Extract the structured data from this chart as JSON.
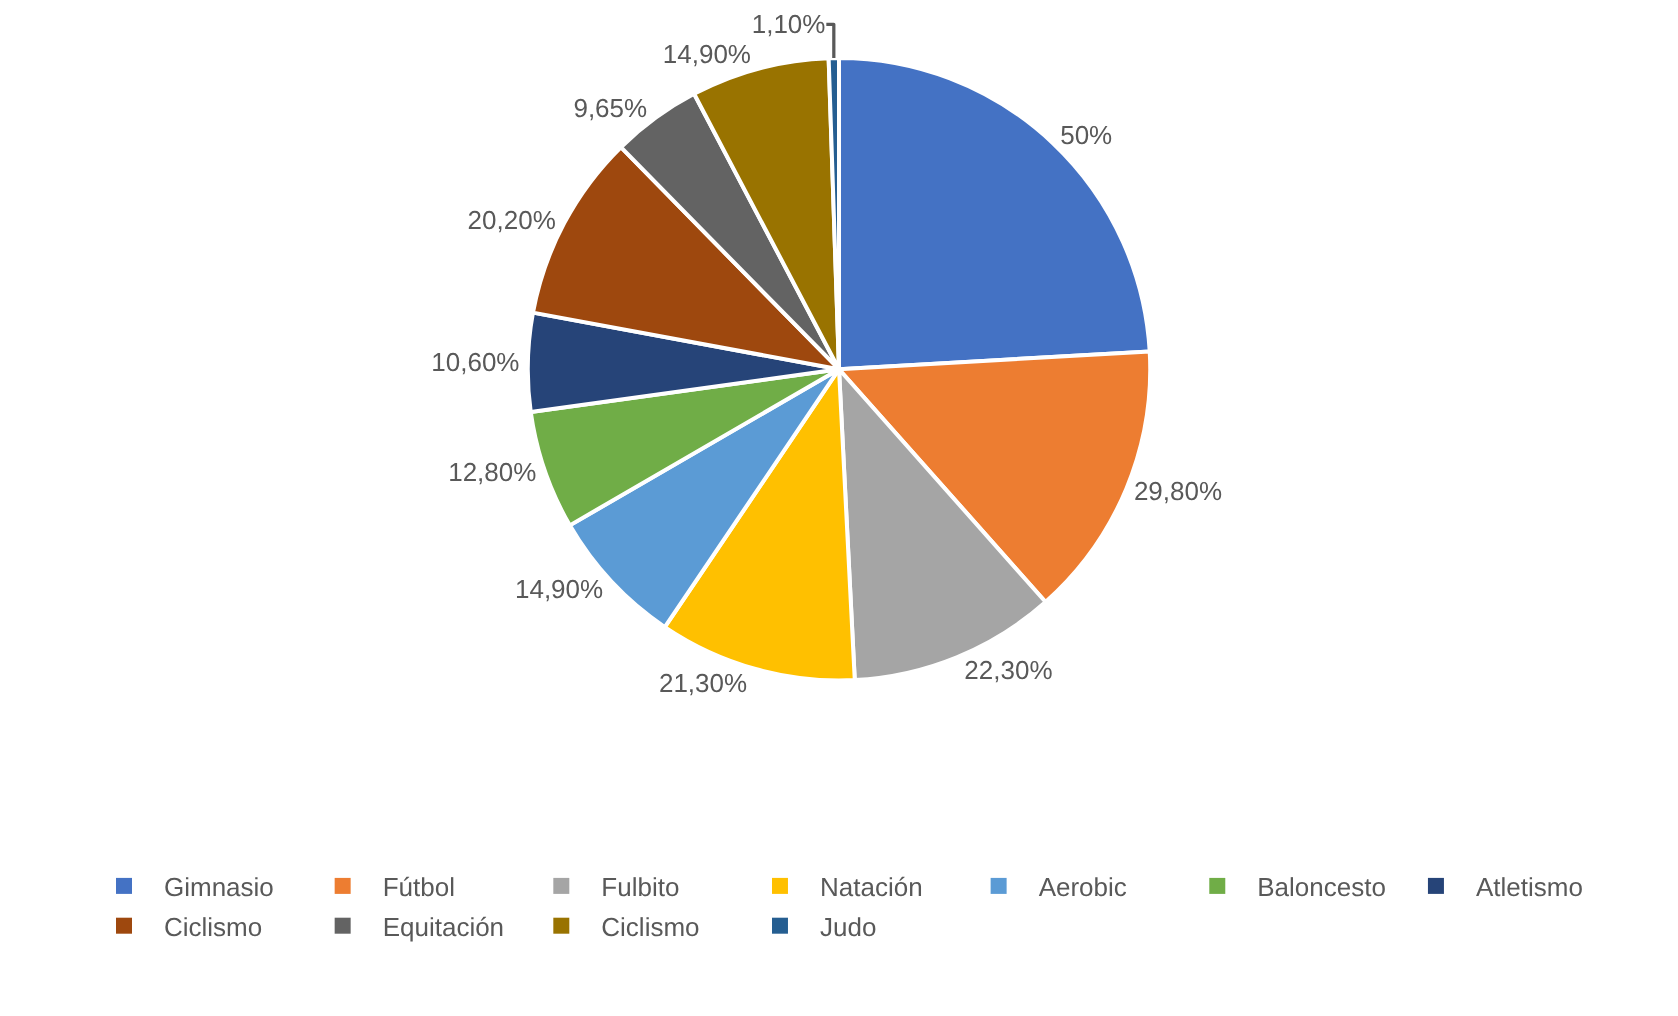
{
  "chart_data": {
    "type": "pie",
    "categories": [
      "Gimnasio",
      "Fútbol",
      "Fulbito",
      "Natación",
      "Aerobic",
      "Baloncesto",
      "Atletismo",
      "Ciclismo",
      "Equitación",
      "Ciclismo",
      "Judo"
    ],
    "values": [
      50,
      29.8,
      22.3,
      21.3,
      14.9,
      12.8,
      10.6,
      20.2,
      9.65,
      14.9,
      1.1
    ],
    "value_labels": [
      "50%",
      "29,80%",
      "22,30%",
      "21,30%",
      "14,90%",
      "12,80%",
      "10,60%",
      "20,20%",
      "9,65%",
      "14,90%",
      "1,10%"
    ],
    "colors": [
      "#4472c4",
      "#ed7d31",
      "#a5a5a5",
      "#ffc000",
      "#5b9bd5",
      "#70ad47",
      "#264478",
      "#9e480e",
      "#636363",
      "#997300",
      "#255e91"
    ],
    "legend": "bottom"
  }
}
